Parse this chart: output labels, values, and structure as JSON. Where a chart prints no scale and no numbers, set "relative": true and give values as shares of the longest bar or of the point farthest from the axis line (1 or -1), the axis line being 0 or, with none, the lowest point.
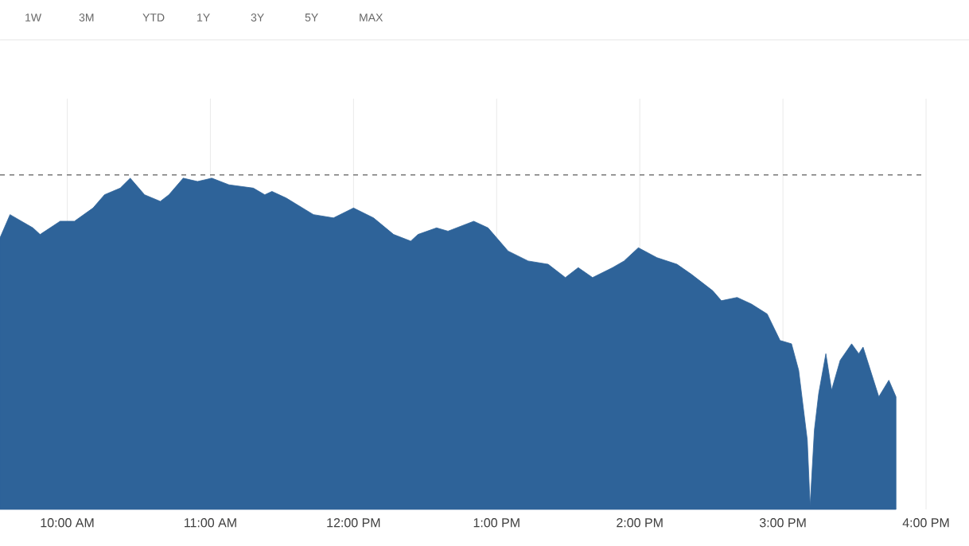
{
  "chart_data": {
    "type": "area",
    "relative": true,
    "color": "#2e6399",
    "grid": "x",
    "annotations": [
      "1W",
      "3M",
      "YTD",
      "1Y",
      "3Y",
      "5Y",
      "MAX"
    ],
    "xlim": [
      9.53,
      16
    ],
    "xticks": [
      {
        "value": 10,
        "label": "10:00 AM"
      },
      {
        "value": 11,
        "label": "11:00 AM"
      },
      {
        "value": 12,
        "label": "12:00 PM"
      },
      {
        "value": 13,
        "label": "1:00 PM"
      },
      {
        "value": 14,
        "label": "2:00 PM"
      },
      {
        "value": 15,
        "label": "3:00 PM"
      },
      {
        "value": 16,
        "label": "4:00 PM"
      }
    ],
    "ref_lines": [
      {
        "axis": "y",
        "value": 1.01,
        "color": "#777777",
        "line_style": "dashed"
      }
    ],
    "x": [
      9.53,
      9.6,
      9.76,
      9.81,
      9.95,
      10.05,
      10.18,
      10.26,
      10.37,
      10.44,
      10.54,
      10.65,
      10.71,
      10.81,
      10.91,
      11.01,
      11.13,
      11.3,
      11.38,
      11.43,
      11.53,
      11.72,
      11.86,
      12.0,
      12.14,
      12.28,
      12.4,
      12.45,
      12.58,
      12.66,
      12.84,
      12.94,
      13.08,
      13.22,
      13.36,
      13.48,
      13.57,
      13.67,
      13.81,
      13.89,
      13.99,
      14.12,
      14.26,
      14.36,
      14.51,
      14.57,
      14.68,
      14.78,
      14.89,
      14.98,
      15.06,
      15.11,
      15.17,
      15.19,
      15.22,
      15.25,
      15.3,
      15.34,
      15.4,
      15.48,
      15.53,
      15.56,
      15.67,
      15.74,
      15.79
    ],
    "values": [
      0.82,
      0.89,
      0.85,
      0.83,
      0.87,
      0.87,
      0.91,
      0.95,
      0.97,
      1.0,
      0.95,
      0.93,
      0.95,
      1.0,
      0.99,
      1.0,
      0.98,
      0.97,
      0.95,
      0.96,
      0.94,
      0.89,
      0.88,
      0.91,
      0.88,
      0.83,
      0.81,
      0.83,
      0.85,
      0.84,
      0.87,
      0.85,
      0.78,
      0.75,
      0.74,
      0.7,
      0.73,
      0.7,
      0.73,
      0.75,
      0.79,
      0.76,
      0.74,
      0.71,
      0.66,
      0.63,
      0.64,
      0.62,
      0.59,
      0.51,
      0.5,
      0.42,
      0.21,
      0.01,
      0.24,
      0.35,
      0.47,
      0.36,
      0.45,
      0.5,
      0.47,
      0.49,
      0.34,
      0.39,
      0.34
    ]
  }
}
